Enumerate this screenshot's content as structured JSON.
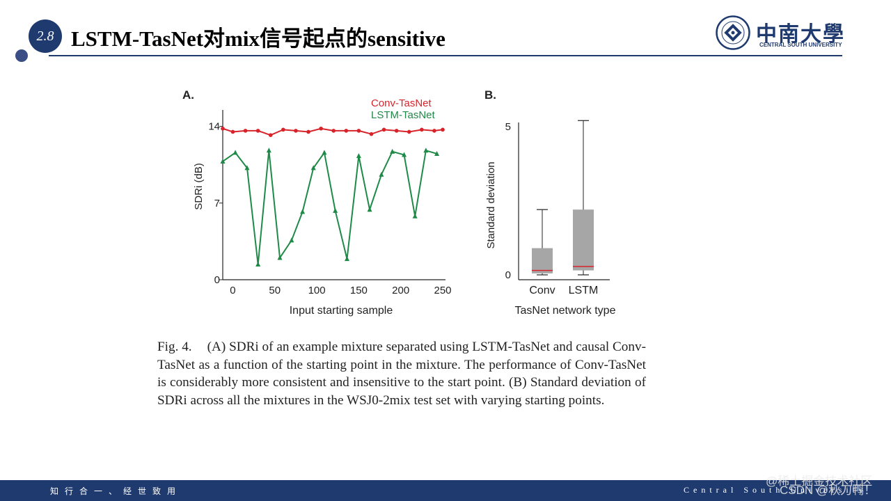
{
  "slide": {
    "section_number": "2.8",
    "title": "LSTM-TasNet对mix信号起点的sensitive",
    "logo_cn": "中南大學",
    "logo_en": "CENTRAL SOUTH UNIVERSITY",
    "footer_motto": "知行合一、经世致用",
    "footer_university": "Central South University",
    "watermark_1": "@稀土掘金技术社区",
    "watermark_2": "CSDN @秋刀鸭！"
  },
  "caption": {
    "label": "Fig. 4.",
    "text": "(A) SDRi of an example mixture separated using LSTM-TasNet and causal Conv-TasNet as a function of the starting point in the mixture. The performance of Conv-TasNet is considerably more consistent and insensitive to the start point. (B) Standard deviation of SDRi across all the mixtures in the WSJ0-2mix test set with varying starting points."
  },
  "colors": {
    "conv": "#d8232a",
    "lstm": "#1f8a47",
    "box_fill": "#a6a6a6",
    "median": "#d8232a",
    "brand": "#1f3a6e"
  },
  "chart_data": [
    {
      "panel": "A.",
      "type": "line",
      "xlabel": "Input starting sample",
      "ylabel": "SDRi (dB)",
      "xticks": [
        0,
        50,
        100,
        150,
        200,
        250
      ],
      "yticks": [
        0,
        7,
        14
      ],
      "xlim": [
        -12,
        250
      ],
      "ylim": [
        0,
        15.5
      ],
      "series": [
        {
          "name": "Conv-TasNet",
          "x": [
            -12,
            0,
            15,
            30,
            45,
            60,
            75,
            90,
            105,
            120,
            135,
            150,
            165,
            180,
            195,
            210,
            225,
            240,
            250
          ],
          "y": [
            13.8,
            13.5,
            13.6,
            13.6,
            13.2,
            13.7,
            13.6,
            13.5,
            13.8,
            13.6,
            13.6,
            13.6,
            13.3,
            13.7,
            13.6,
            13.5,
            13.7,
            13.6,
            13.7
          ]
        },
        {
          "name": "LSTM-TasNet",
          "x": [
            -12,
            3,
            17,
            30,
            43,
            56,
            70,
            83,
            96,
            109,
            122,
            136,
            150,
            163,
            177,
            190,
            204,
            217,
            230,
            243
          ],
          "y": [
            10.8,
            11.6,
            10.2,
            1.4,
            11.8,
            2.0,
            3.6,
            6.2,
            10.2,
            11.6,
            6.3,
            1.9,
            11.3,
            6.4,
            9.6,
            11.7,
            11.4,
            5.8,
            11.8,
            11.5
          ]
        }
      ]
    },
    {
      "panel": "B.",
      "type": "box",
      "xlabel": "TasNet network type",
      "ylabel": "Standard deviation",
      "yticks": [
        0,
        5
      ],
      "ylim": [
        0,
        5.3
      ],
      "categories": [
        "Conv",
        "LSTM"
      ],
      "boxes": [
        {
          "min": 0.0,
          "q1": 0.05,
          "median": 0.15,
          "q3": 0.9,
          "max": 2.2
        },
        {
          "min": 0.0,
          "q1": 0.15,
          "median": 0.28,
          "q3": 2.2,
          "max": 5.2
        }
      ]
    }
  ]
}
